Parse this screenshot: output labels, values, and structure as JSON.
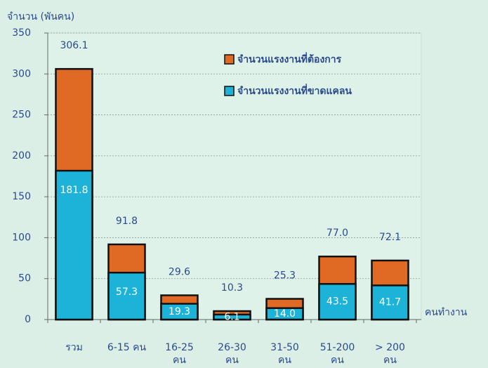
{
  "chart_data": {
    "type": "bar",
    "ylabel": "จำนวน (พันคน)",
    "xlabel": "คนทำงาน",
    "categories": [
      "รวม",
      "6-15 คน",
      "16-25 คน",
      "26-30 คน",
      "31-50 คน",
      "51-200 คน",
      "> 200 คน"
    ],
    "series": [
      {
        "name": "จำนวนแรงงานที่ต้องการ",
        "color": "#e06a24",
        "values": [
          306.1,
          91.8,
          29.6,
          10.3,
          25.3,
          77,
          72.1
        ],
        "value_labels": [
          "306.1",
          "91.8",
          "29.6",
          "10.3",
          "25.3",
          "77.0",
          "72.1"
        ]
      },
      {
        "name": "จำนวนแรงงานที่ขาดแคลน",
        "color": "#1db3d8",
        "values": [
          181.8,
          57.3,
          19.3,
          6.1,
          14,
          43.5,
          41.7
        ],
        "value_labels": [
          "181.8",
          "57.3",
          "19.3",
          "6.1",
          "14.0",
          "43.5",
          "41.7"
        ]
      }
    ],
    "ylim": [
      0,
      350
    ],
    "yticks": [
      0,
      50,
      100,
      150,
      200,
      250,
      300,
      350
    ],
    "grid": true
  }
}
